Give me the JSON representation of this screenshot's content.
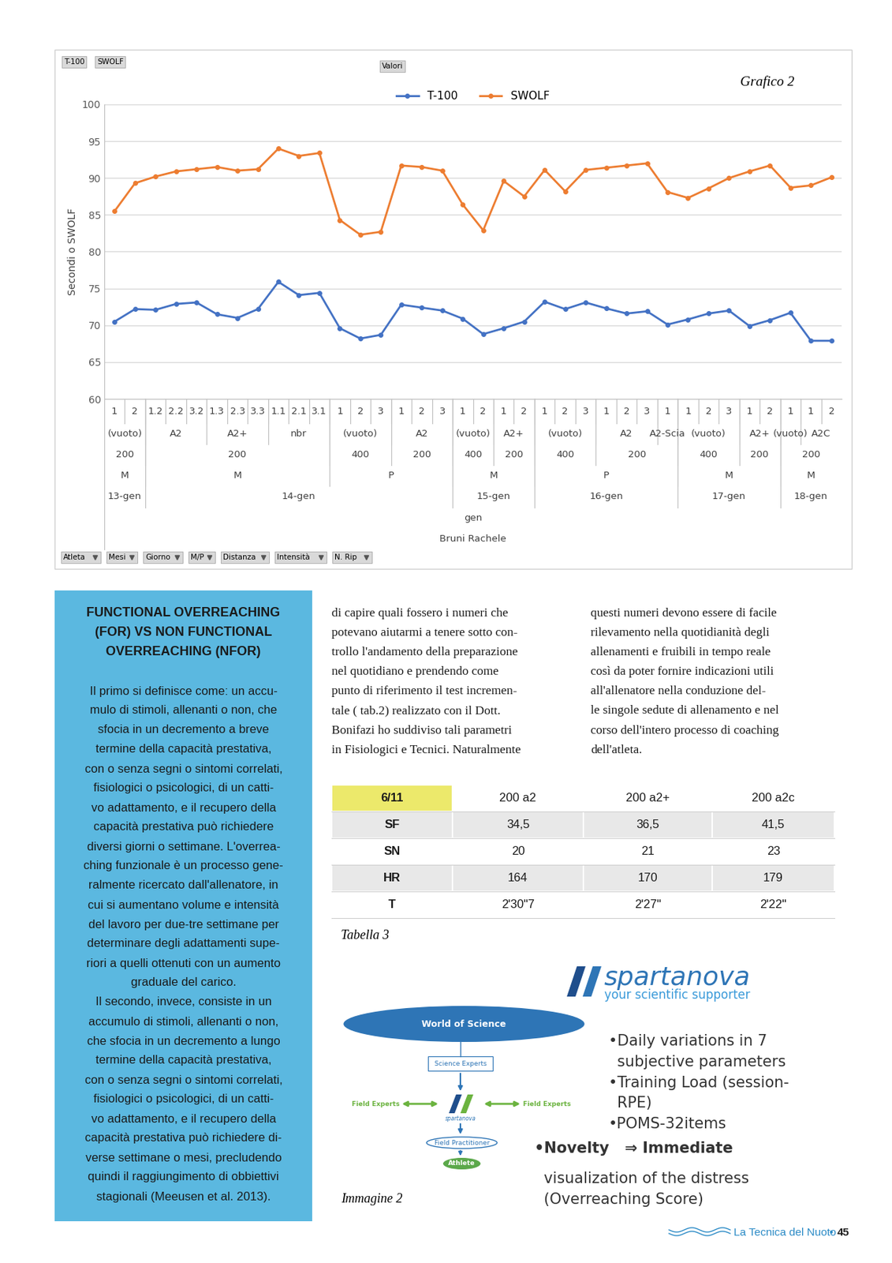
{
  "chart_data": {
    "type": "line",
    "caption": "Grafico 2",
    "pivot_buttons": [
      "T-100",
      "SWOLF"
    ],
    "values_button": "Valori",
    "field_buttons": [
      "Atleta",
      "Mesi",
      "Giorno",
      "M/P",
      "Distanza",
      "Intensità",
      "N. Rip"
    ],
    "y_label": "Secondi o SWOLF",
    "categories": [
      "1",
      "2",
      "1.2",
      "2.2",
      "3.2",
      "1.3",
      "2.3",
      "3.3",
      "1.1",
      "2.1",
      "3.1",
      "1",
      "2",
      "3",
      "1",
      "2",
      "3",
      "1",
      "2",
      "1",
      "2",
      "1",
      "2",
      "3",
      "1",
      "2",
      "3",
      "1",
      "1",
      "2",
      "3",
      "1",
      "2",
      "1",
      "1",
      "2"
    ],
    "category_groups": [
      [
        "(vuoto)",
        "(vuoto)",
        "A2",
        "A2",
        "A2",
        "A2+",
        "A2+",
        "A2+",
        "nbr",
        "nbr",
        "nbr",
        "(vuoto)",
        "(vuoto)",
        "(vuoto)",
        "A2",
        "A2",
        "A2",
        "(vuoto)",
        "(vuoto)",
        "A2+",
        "A2+",
        "(vuoto)",
        "(vuoto)",
        "(vuoto)",
        "A2",
        "A2",
        "A2",
        "A2-Scia",
        "(vuoto)",
        "(vuoto)",
        "(vuoto)",
        "A2+",
        "A2+",
        "(vuoto)",
        "A2C",
        "A2C"
      ],
      [
        "200",
        "200",
        "200",
        "200",
        "200",
        "200",
        "200",
        "200",
        "200",
        "200",
        "200",
        "400",
        "400",
        "400",
        "200",
        "200",
        "200",
        "400",
        "400",
        "200",
        "200",
        "400",
        "400",
        "400",
        "200",
        "200",
        "200",
        "200",
        "400",
        "400",
        "400",
        "200",
        "200",
        "200",
        "200",
        "200"
      ],
      [
        "M",
        "M",
        "M",
        "M",
        "M",
        "M",
        "M",
        "M",
        "M",
        "M",
        "M",
        "P",
        "P",
        "P",
        "P",
        "P",
        "P",
        "M",
        "M",
        "M",
        "M",
        "P",
        "P",
        "P",
        "P",
        "P",
        "P",
        "P",
        "M",
        "M",
        "M",
        "M",
        "M",
        "M",
        "M",
        "M"
      ],
      [
        "13-gen",
        "13-gen",
        "14-gen",
        "14-gen",
        "14-gen",
        "14-gen",
        "14-gen",
        "14-gen",
        "14-gen",
        "14-gen",
        "14-gen",
        "14-gen",
        "14-gen",
        "14-gen",
        "14-gen",
        "14-gen",
        "14-gen",
        "15-gen",
        "15-gen",
        "15-gen",
        "15-gen",
        "16-gen",
        "16-gen",
        "16-gen",
        "16-gen",
        "16-gen",
        "16-gen",
        "16-gen",
        "17-gen",
        "17-gen",
        "17-gen",
        "17-gen",
        "17-gen",
        "18-gen",
        "18-gen",
        "18-gen"
      ],
      [
        "gen",
        "gen",
        "gen",
        "gen",
        "gen",
        "gen",
        "gen",
        "gen",
        "gen",
        "gen",
        "gen",
        "gen",
        "gen",
        "gen",
        "gen",
        "gen",
        "gen",
        "gen",
        "gen",
        "gen",
        "gen",
        "gen",
        "gen",
        "gen",
        "gen",
        "gen",
        "gen",
        "gen",
        "gen",
        "gen",
        "gen",
        "gen",
        "gen",
        "gen",
        "gen",
        "gen"
      ],
      [
        "Bruni Rachele",
        "Bruni Rachele",
        "Bruni Rachele",
        "Bruni Rachele",
        "Bruni Rachele",
        "Bruni Rachele",
        "Bruni Rachele",
        "Bruni Rachele",
        "Bruni Rachele",
        "Bruni Rachele",
        "Bruni Rachele",
        "Bruni Rachele",
        "Bruni Rachele",
        "Bruni Rachele",
        "Bruni Rachele",
        "Bruni Rachele",
        "Bruni Rachele",
        "Bruni Rachele",
        "Bruni Rachele",
        "Bruni Rachele",
        "Bruni Rachele",
        "Bruni Rachele",
        "Bruni Rachele",
        "Bruni Rachele",
        "Bruni Rachele",
        "Bruni Rachele",
        "Bruni Rachele",
        "Bruni Rachele",
        "Bruni Rachele",
        "Bruni Rachele",
        "Bruni Rachele",
        "Bruni Rachele",
        "Bruni Rachele",
        "Bruni Rachele",
        "Bruni Rachele",
        "Bruni Rachele"
      ]
    ],
    "series": [
      {
        "name": "T-100",
        "color": "#4472c4",
        "marker": "o",
        "line_style": "solid",
        "values": [
          70.5,
          72.2,
          72.1,
          72.9,
          73.1,
          71.5,
          71.0,
          72.2,
          75.9,
          74.1,
          74.4,
          69.6,
          68.2,
          68.7,
          72.8,
          72.4,
          72.0,
          70.9,
          68.8,
          69.6,
          70.5,
          73.2,
          72.2,
          73.1,
          72.3,
          71.6,
          71.9,
          70.1,
          70.8,
          71.6,
          72.0,
          69.9,
          70.7,
          71.7,
          67.9,
          67.9
        ]
      },
      {
        "name": "SWOLF",
        "color": "#ed7d31",
        "marker": "o",
        "line_style": "solid",
        "values": [
          85.5,
          89.3,
          90.2,
          90.9,
          91.2,
          91.5,
          91.0,
          91.2,
          94.0,
          93.0,
          93.4,
          84.3,
          82.3,
          82.7,
          91.7,
          91.5,
          91.0,
          86.4,
          82.9,
          89.6,
          87.5,
          91.1,
          88.2,
          91.1,
          91.4,
          91.7,
          92.0,
          88.1,
          87.3,
          88.6,
          90.0,
          90.9,
          91.7,
          88.7,
          89.0,
          90.1
        ]
      }
    ],
    "ylim": [
      60,
      100
    ],
    "yticks": [
      60,
      65,
      70,
      75,
      80,
      85,
      90,
      95,
      100
    ],
    "grid": true,
    "legend": "upper center"
  },
  "sidebar": {
    "title": [
      "FUNCTIONAL OVERREACHING",
      "(FOR) VS NON FUNCTIONAL",
      "OVERREACHING (NFOR)"
    ],
    "lines": [
      "Il primo si definisce come: un accu-",
      "mulo di stimoli, allenanti o non, che",
      "sfocia in un decremento a breve",
      "termine della capacità prestativa,",
      "con o senza segni o sintomi correlati,",
      "fisiologici o psicologici, di un catti-",
      "vo adattamento, e il recupero della",
      "capacità prestativa può richiedere",
      "diversi giorni o settimane. L'overrea-",
      "ching funzionale è un processo gene-",
      "ralmente ricercato dall'allenatore, in",
      "cui si aumentano volume e intensità",
      "del lavoro per due-tre settimane per",
      "determinare degli adattamenti supe-",
      "riori a quelli ottenuti con un aumento",
      "graduale del carico.",
      "Il secondo, invece, consiste in un",
      "accumulo di stimoli, allenanti o non,",
      "che sfocia in un decremento a lungo",
      "termine della capacità prestativa,",
      "con o senza segni o sintomi correlati,",
      "fisiologici o psicologici, di un catti-",
      "vo adattamento, e il recupero della",
      "capacità prestativa può richiedere di-",
      "verse settimane o mesi, precludendo",
      "quindi il raggiungimento di obbiettivi",
      "stagionali (Meeusen et al. 2013)."
    ]
  },
  "body": {
    "column_1": [
      "di capire quali fossero i numeri che",
      "potevano aiutarmi a tenere sotto con-",
      "trollo l'andamento della preparazione",
      "nel quotidiano e prendendo come",
      "punto di riferimento il test incremen-",
      "tale ( tab.2) realizzato con il Dott.",
      "Bonifazi ho suddiviso tali parametri",
      "in Fisiologici e Tecnici. Naturalmente"
    ],
    "column_2": [
      "questi numeri devono essere di facile",
      "rilevamento nella quotidianità degli",
      "allenamenti e fruibili in tempo reale",
      "così da poter fornire indicazioni utili",
      "all'allenatore nella conduzione del-",
      "le singole sedute di allenamento e nel",
      "corso dell'intero processo di coaching",
      "dell'atleta."
    ]
  },
  "table": {
    "caption": "Tabella 3",
    "header": [
      "6/11",
      "200 a2",
      "200 a2+",
      "200 a2c"
    ],
    "rows": [
      [
        "SF",
        "34,5",
        "36,5",
        "41,5"
      ],
      [
        "SN",
        "20",
        "21",
        "23"
      ],
      [
        "HR",
        "164",
        "170",
        "179"
      ],
      [
        "T",
        "2'30\"7",
        "2'27\"",
        "2'22\""
      ]
    ]
  },
  "image": {
    "caption": "Immagine 2",
    "logo": {
      "name": "spartanova",
      "tagline": "your scientific supporter"
    },
    "diagram": {
      "top": "World of Science",
      "experts": "Science Experts",
      "field_left": "Field Experts",
      "field_right": "Field Experts",
      "hub": "spartanova",
      "practitioner": "Field Practitioner",
      "athlete": "Athlete"
    },
    "bullets": [
      "•Daily variations in 7",
      "subjective parameters",
      "•Training Load (session-",
      "RPE)",
      "•POMS-32items"
    ],
    "novelty": [
      "•Novelty   ⇒ Immediate",
      "visualization of the distress",
      "(Overreaching Score)"
    ]
  },
  "footer": {
    "publication": "La Tecnica del Nuoto",
    "separator": "•",
    "page": "45"
  }
}
